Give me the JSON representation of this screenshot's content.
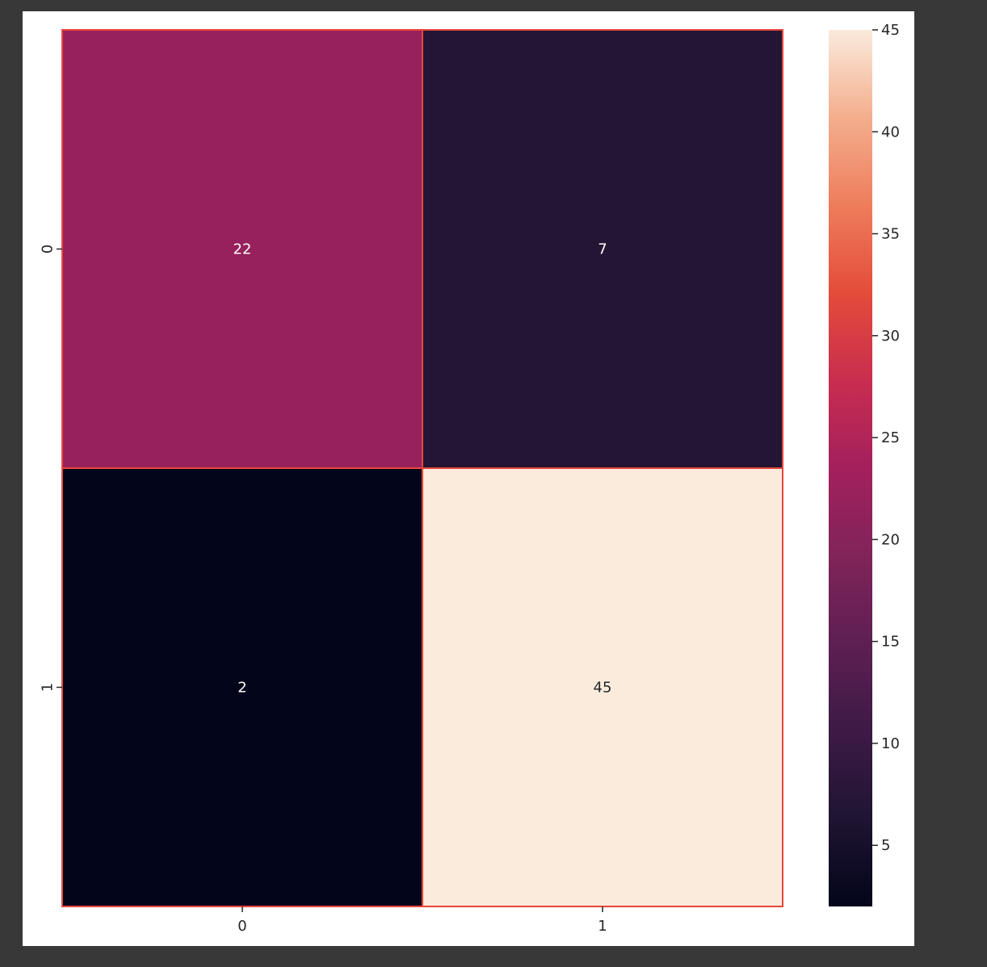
{
  "chart_data": {
    "type": "heatmap",
    "title": "",
    "xlabel": "",
    "ylabel": "",
    "x_categories": [
      "0",
      "1"
    ],
    "y_categories": [
      "0",
      "1"
    ],
    "values": [
      [
        22,
        7
      ],
      [
        2,
        45
      ]
    ],
    "colorbar": {
      "vmin": 2,
      "vmax": 45,
      "ticks": [
        5,
        10,
        15,
        20,
        25,
        30,
        35,
        40,
        45
      ],
      "colormap": "rocket"
    },
    "cell_border_color": "#e8473a",
    "annotations": true
  },
  "colors": {
    "background": "#383838",
    "figure": "#ffffff",
    "cell_22": "#ad2d53",
    "cell_7": "#281a33",
    "cell_2": "#040518",
    "cell_45": "#f6e9df"
  }
}
